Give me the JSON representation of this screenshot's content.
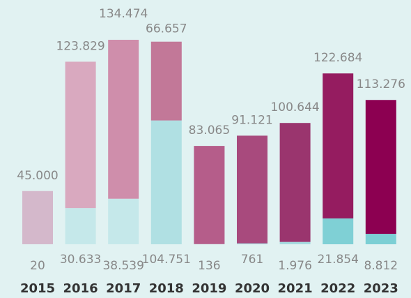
{
  "chart_data": {
    "type": "bar",
    "stacked": true,
    "categories": [
      "2015",
      "2016",
      "2017",
      "2018",
      "2019",
      "2020",
      "2021",
      "2022",
      "2023"
    ],
    "series": [
      {
        "values": [
          20,
          30633,
          38539,
          104751,
          136,
          761,
          1976,
          21854,
          8812
        ],
        "value_labels": [
          "20",
          "30.633",
          "38.539",
          "104.751",
          "136",
          "761",
          "1.976",
          "21.854",
          "8.812"
        ],
        "colors": [
          "#d4b8cb",
          "#c5e8ea",
          "#c5e8ea",
          "#b0e0e3",
          "#a6dbe0",
          "#a6dbe0",
          "#a6dbe0",
          "#7fd0d5",
          "#7ccfd4"
        ]
      },
      {
        "values": [
          45000,
          123829,
          134474,
          66657,
          83065,
          91121,
          100644,
          122684,
          113276
        ],
        "value_labels": [
          "45.000",
          "123.829",
          "134.474",
          "66.657",
          "83.065",
          "91.121",
          "100.644",
          "122.684",
          "113.276"
        ],
        "colors": [
          "#d4b8cb",
          "#d9a9bf",
          "#cf8eab",
          "#c27898",
          "#b55d8a",
          "#a84a7d",
          "#9a356e",
          "#951c60",
          "#8c0051"
        ]
      }
    ]
  }
}
